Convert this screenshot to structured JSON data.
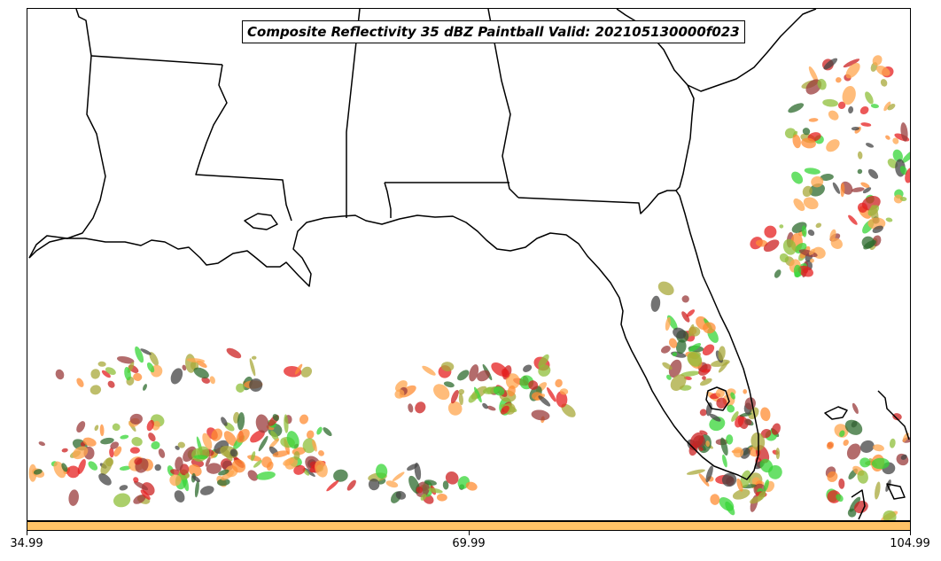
{
  "title": "Composite Reflectivity 35 dBZ Paintball Valid: 202105130000f023",
  "colorbar": {
    "color": "#ffc266",
    "ticks": [
      "34.99",
      "69.99",
      "104.99"
    ]
  },
  "member_colors": [
    "#9a3b3b",
    "#ff8c33",
    "#2e6b2e",
    "#a8a83a",
    "#e62020",
    "#37d637",
    "#444444",
    "#ffa64d",
    "#8fbf3a",
    "#cc2222"
  ]
}
